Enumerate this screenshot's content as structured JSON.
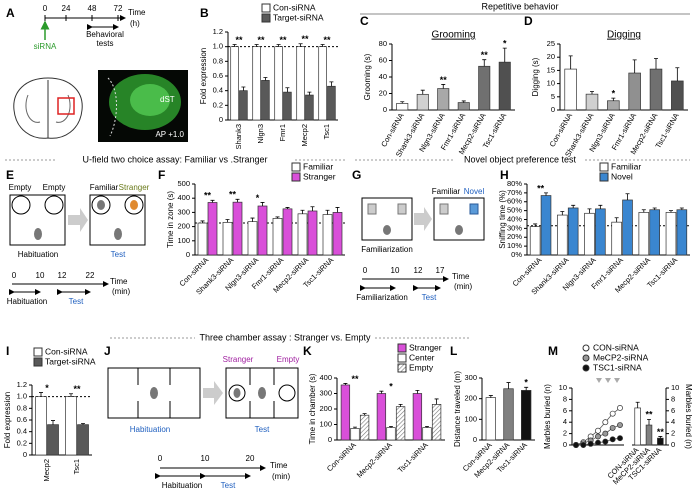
{
  "panels": [
    "A",
    "B",
    "C",
    "D",
    "E",
    "F",
    "G",
    "H",
    "I",
    "J",
    "K",
    "L",
    "M"
  ],
  "headings": [
    "Repetitive behavior",
    "U-field two choice assay: Familiar vs .Stranger",
    "Novel object preference test",
    "Three chamber assay : Stranger vs. Empty"
  ],
  "panel_a": {
    "timeline": [
      0,
      24,
      48,
      72
    ],
    "axis": "Time",
    "unit": "(h)",
    "treatment": "siRNA",
    "tests": [
      "Behavioral",
      "tests"
    ],
    "region": "dST",
    "section": "AP +1.0"
  },
  "panel_e": {
    "top": [
      "Empty",
      "Empty",
      "Familiar",
      "Stranger"
    ],
    "phases": [
      "Habituation",
      "Test"
    ],
    "timeline": [
      0,
      10,
      12,
      22
    ],
    "axis": "Time",
    "unit": "(min)",
    "periods": [
      "Habituation",
      "Test"
    ]
  },
  "panel_g": {
    "top": [
      "Familiar",
      "Novel"
    ],
    "phases": [
      "Familiarization"
    ],
    "timeline": [
      0,
      10,
      12,
      17
    ],
    "axis": "Time",
    "unit": "(min)",
    "periods": [
      "Familiarization",
      "Test"
    ]
  },
  "panel_j": {
    "top": [
      "Stranger",
      "Empty"
    ],
    "phases": [
      "Habituation",
      "Test"
    ],
    "timeline": [
      0,
      10,
      20
    ],
    "axis": "Time",
    "unit": "(min)",
    "periods": [
      "Habituation",
      "Test"
    ]
  },
  "chart_data": [
    {
      "type": "bar",
      "ylabel": "Fold expression",
      "categories": [
        "Shank3",
        "Nlgn3",
        "Fmr1",
        "Mecp2",
        "Tsc1"
      ],
      "series": [
        {
          "name": "Con-siRNA",
          "color": "#ffffff",
          "values": [
            1,
            1,
            1,
            1,
            1
          ],
          "errors": [
            0.03,
            0.03,
            0.03,
            0.04,
            0.03
          ]
        },
        {
          "name": "Target-siRNA",
          "color": "#595959",
          "values": [
            0.4,
            0.54,
            0.38,
            0.34,
            0.46
          ],
          "errors": [
            0.05,
            0.04,
            0.06,
            0.04,
            0.06
          ]
        }
      ],
      "significance": [
        "**",
        "**",
        "**",
        "**",
        "**"
      ],
      "reference_line": 1,
      "ylim": [
        0,
        1.2
      ],
      "yticks": [
        0,
        0.2,
        0.4,
        0.6,
        0.8,
        {
          "value": 1,
          "label": "1.0"
        },
        1.2
      ],
      "legend": "top"
    },
    {
      "type": "bar",
      "title": "Grooming",
      "ylabel": "Grooming (s)",
      "categories": [
        "Con-siRNA",
        "Shank3-siRNA",
        "Nlgn3-siRNA",
        "Fmr1-siRNA",
        "Mecp2-siRNA",
        "Tsc1-siRNA"
      ],
      "values": [
        8,
        19,
        26,
        9,
        53,
        58
      ],
      "errors": [
        2,
        5,
        5,
        2,
        8,
        17
      ],
      "colors": [
        "#ffffff",
        "#d0d0d0",
        "#a8a8a8",
        "#909090",
        "#707070",
        "#505050"
      ],
      "significance": [
        null,
        null,
        "**",
        null,
        "**",
        "*"
      ],
      "ylim": [
        0,
        80
      ],
      "yticks": [
        0,
        20,
        40,
        60,
        80
      ]
    },
    {
      "type": "bar",
      "title": "Digging",
      "ylabel": "Digging (s)",
      "categories": [
        "Con-siRNA",
        "Shank3-siRNA",
        "Nlgn3-siRNA",
        "Fmr1-siRNA",
        "Mecp2-siRNA",
        "Tsc1-siRNA"
      ],
      "values": [
        15.5,
        6,
        3.5,
        14,
        15.5,
        11
      ],
      "errors": [
        5,
        1,
        1,
        5,
        4,
        5
      ],
      "colors": [
        "#ffffff",
        "#d0d0d0",
        "#a8a8a8",
        "#909090",
        "#707070",
        "#505050"
      ],
      "significance": [
        null,
        null,
        "*",
        null,
        null,
        null
      ],
      "ylim": [
        0,
        25
      ],
      "yticks": [
        0,
        5,
        10,
        15,
        20,
        25
      ]
    },
    {
      "type": "bar",
      "ylabel": "Time in zone (s)",
      "categories": [
        "Con-siRNA",
        "Shank3-siRNA",
        "Nlgn3-siRNA",
        "Fmr1-siRNA",
        "Mecp2-siRNA",
        "Tsc1-siRNA"
      ],
      "series": [
        {
          "name": "Familiar",
          "color": "#ffffff",
          "values": [
            225,
            230,
            235,
            258,
            290,
            285
          ],
          "errors": [
            15,
            20,
            25,
            10,
            25,
            30
          ]
        },
        {
          "name": "Stranger",
          "color": "#d94fd9",
          "values": [
            370,
            372,
            345,
            325,
            310,
            300
          ],
          "errors": [
            15,
            20,
            25,
            10,
            30,
            35
          ]
        }
      ],
      "significance": [
        "**",
        "**",
        "*",
        null,
        null,
        null
      ],
      "reference_line": 225,
      "ylim": [
        0,
        500
      ],
      "yticks": [
        0,
        100,
        200,
        300,
        400,
        500
      ],
      "legend": "top"
    },
    {
      "type": "bar",
      "ylabel": "Sniffing time (%)",
      "categories": [
        "Con-siRNA",
        "Shank3-siRNA",
        "Nlgn3-siRNA",
        "Fmr1-siRNA",
        "Mecp2-siRNA",
        "Tsc1-siRNA"
      ],
      "series": [
        {
          "name": "Familiar",
          "color": "#ffffff",
          "values": [
            32,
            45,
            47,
            37,
            48,
            48
          ],
          "errors": [
            3,
            4,
            5,
            5,
            3,
            2
          ]
        },
        {
          "name": "Novel",
          "color": "#3a86d0",
          "values": [
            67,
            53,
            52,
            62,
            51,
            51
          ],
          "errors": [
            3,
            3,
            4,
            7,
            2,
            2
          ]
        }
      ],
      "significance": [
        "**",
        null,
        null,
        null,
        null,
        null
      ],
      "reference_line": 33,
      "ylim": [
        0,
        80
      ],
      "yticks": [
        {
          "value": 0,
          "label": "0%"
        },
        {
          "value": 10,
          "label": "10%"
        },
        {
          "value": 20,
          "label": "20%"
        },
        {
          "value": 30,
          "label": "30%"
        },
        {
          "value": 40,
          "label": "40%"
        },
        {
          "value": 50,
          "label": "50%"
        },
        {
          "value": 60,
          "label": "60%"
        },
        {
          "value": 70,
          "label": "70%"
        },
        {
          "value": 80,
          "label": "80%"
        }
      ],
      "legend": "top"
    },
    {
      "type": "bar",
      "ylabel": "Fold expression",
      "categories": [
        "Mecp2",
        "Tsc1"
      ],
      "series": [
        {
          "name": "Con-siRNA",
          "color": "#ffffff",
          "values": [
            1,
            1
          ],
          "errors": [
            0.07,
            0.05
          ]
        },
        {
          "name": "Target-siRNA",
          "color": "#595959",
          "values": [
            0.52,
            0.52
          ],
          "errors": [
            0.07,
            0.02
          ]
        }
      ],
      "significance": [
        "*",
        "**"
      ],
      "reference_line": 1,
      "ylim": [
        0,
        1.2
      ],
      "yticks": [
        0,
        0.2,
        0.4,
        0.6,
        0.8,
        {
          "value": 1,
          "label": "1.0"
        },
        1.2
      ],
      "legend": "top"
    },
    {
      "type": "bar",
      "ylabel": "Time in chamber (s)",
      "categories": [
        "Con-siRNA",
        "Mecp2-siRNA",
        "Tsc1-siRNA"
      ],
      "series": [
        {
          "name": "Stranger",
          "color": "#d94fd9",
          "values": [
            355,
            300,
            300
          ],
          "errors": [
            10,
            15,
            20
          ]
        },
        {
          "name": "Center",
          "color": "#ffffff",
          "values": [
            75,
            80,
            80
          ],
          "errors": [
            8,
            8,
            8
          ]
        },
        {
          "name": "Empty",
          "color": "#bbbbbb",
          "pattern": "hatch",
          "values": [
            160,
            215,
            230
          ],
          "errors": [
            10,
            15,
            35
          ]
        }
      ],
      "significance": [
        "**",
        "*",
        null
      ],
      "ylim": [
        0,
        400
      ],
      "yticks": [
        0,
        100,
        200,
        300,
        400
      ],
      "legend": "top"
    },
    {
      "type": "bar",
      "ylabel": "Distance traveled (m)",
      "categories": [
        "Con-siRNA",
        "Mecp2-siRNA",
        "Tsc1-siRNA"
      ],
      "values": [
        205,
        248,
        240
      ],
      "errors": [
        10,
        30,
        15
      ],
      "colors": [
        "#ffffff",
        "#808080",
        "#111111"
      ],
      "significance": [
        null,
        null,
        "*"
      ],
      "ylim": [
        0,
        300
      ],
      "yticks": [
        0,
        100,
        200,
        300
      ]
    },
    {
      "type": "line",
      "ylabel": "Marbles buried (n)",
      "categories": [
        null,
        null,
        null,
        null,
        null,
        null,
        null
      ],
      "series": [
        {
          "name": "CON-siRNA",
          "color": "#ffffff",
          "values": [
            0,
            0.5,
            1.5,
            2.5,
            4,
            5.5,
            6.5
          ]
        },
        {
          "name": "MeCP2-siRNA",
          "color": "#999999",
          "values": [
            0,
            0.3,
            0.8,
            1.5,
            2,
            3,
            3.5
          ]
        },
        {
          "name": "TSC1-siRNA",
          "color": "#111111",
          "values": [
            0,
            0,
            0.2,
            0.4,
            0.6,
            1,
            1.2
          ]
        }
      ],
      "ylim": [
        0,
        10
      ],
      "yticks": [
        0,
        2,
        4,
        6,
        8,
        10
      ],
      "legend": "top"
    },
    {
      "type": "bar",
      "ylabel": "Marbles buried (n)",
      "yaxis": "right",
      "categories": [
        "CON-siRNA",
        "MeCP2-siRNA",
        "TSC1-siRNA"
      ],
      "values": [
        6.5,
        3.5,
        1.2
      ],
      "errors": [
        1,
        1,
        0.3
      ],
      "colors": [
        "#ffffff",
        "#808080",
        "#111111"
      ],
      "significance": [
        null,
        "**",
        "**"
      ],
      "ylim": [
        0,
        10
      ],
      "yticks": [
        0,
        2,
        4,
        6,
        8,
        10
      ]
    }
  ]
}
